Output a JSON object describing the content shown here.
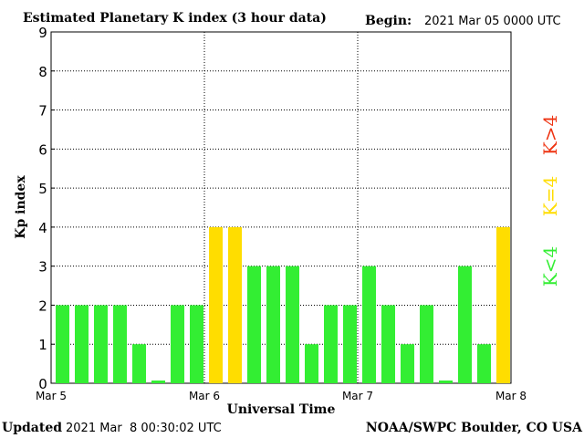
{
  "chart_data": {
    "type": "bar",
    "title": "Estimated Planetary K index (3 hour data)",
    "begin_label": "Begin:",
    "begin_value": "2021 Mar 05 0000 UTC",
    "xlabel": "Universal Time",
    "ylabel": "Kp index",
    "ylim": [
      0,
      9
    ],
    "yticks": [
      "0",
      "1",
      "2",
      "3",
      "4",
      "5",
      "6",
      "7",
      "8",
      "9"
    ],
    "xticks": [
      "Mar 5",
      "Mar 6",
      "Mar 7",
      "Mar 8"
    ],
    "grid": true,
    "values": [
      2,
      2,
      2,
      2,
      1,
      0.07,
      2,
      2,
      4,
      4,
      3,
      3,
      3,
      1,
      2,
      2,
      3,
      2,
      1,
      2,
      0.07,
      3,
      1,
      4
    ],
    "legend": [
      {
        "label": "K<4",
        "color": "#33ee33"
      },
      {
        "label": "K=4",
        "color": "#ffdd00"
      },
      {
        "label": "K>4",
        "color": "#ee3311"
      }
    ]
  },
  "footer": {
    "updated_label": "Updated",
    "updated_value": "2021 Mar  8 00:30:02 UTC",
    "credit": "NOAA/SWPC Boulder, CO USA"
  }
}
